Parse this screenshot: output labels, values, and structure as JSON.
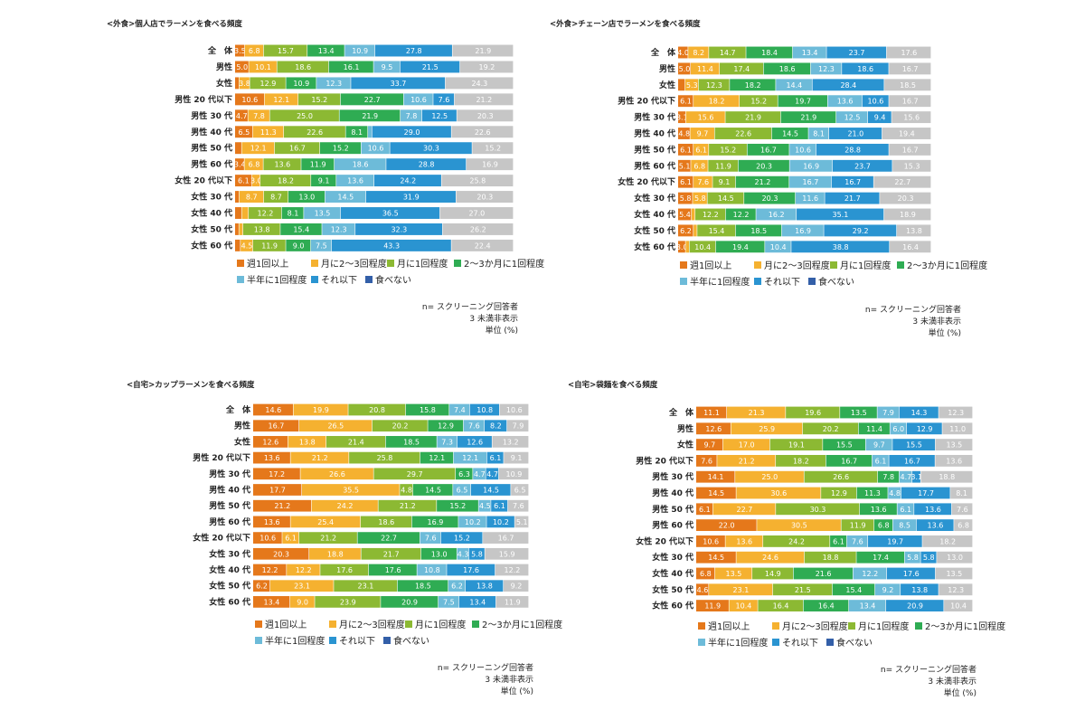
{
  "colors": [
    "#e5781b",
    "#f5b130",
    "#8cb933",
    "#2fac53",
    "#6dbbd9",
    "#2a94d1",
    "#335fa8",
    "#c6c6c6"
  ],
  "legend": [
    "週1回以上",
    "月に2～3回程度",
    "月に1回程度",
    "2～3か月に1回程度",
    "半年に1回程度",
    "それ以下",
    "食べない"
  ],
  "notes": [
    "n= スクリーニング回答者",
    "3 未満非表示",
    "単位 (%)"
  ],
  "chart_data": [
    {
      "type": "bar",
      "stacked": true,
      "orientation": "horizontal",
      "title": "<外食>個人店でラーメンを食べる頻度",
      "categories": [
        "全　体",
        "男性",
        "女性",
        "男性 20 代以下",
        "男性 30 代",
        "男性 40 代",
        "男性 50 代",
        "男性 60 代",
        "女性 20 代以下",
        "女性 30 代",
        "女性 40 代",
        "女性 50 代",
        "女性 60 代"
      ],
      "series": [
        {
          "name": "週1回以上",
          "values": [
            3.5,
            5.0,
            1.5,
            10.6,
            4.7,
            6.5,
            2.5,
            3.4,
            6.1,
            1.5,
            2.5,
            1.5,
            2.0
          ]
        },
        {
          "name": "月に2～3回程度",
          "values": [
            6.8,
            10.1,
            3.8,
            12.1,
            7.8,
            11.3,
            12.1,
            6.8,
            3.0,
            8.7,
            2.5,
            1.5,
            4.5
          ]
        },
        {
          "name": "月に1回程度",
          "values": [
            15.7,
            18.6,
            12.9,
            15.2,
            25.0,
            22.6,
            16.7,
            13.6,
            18.2,
            8.7,
            12.2,
            13.8,
            11.9
          ]
        },
        {
          "name": "2～3か月に1回程度",
          "values": [
            13.4,
            16.1,
            10.9,
            22.7,
            21.9,
            8.1,
            15.2,
            11.9,
            9.1,
            13.0,
            8.1,
            15.4,
            9.0
          ]
        },
        {
          "name": "半年に1回程度",
          "values": [
            10.9,
            9.5,
            12.3,
            10.6,
            7.8,
            1.5,
            10.6,
            18.6,
            13.6,
            14.5,
            13.5,
            12.3,
            7.5
          ]
        },
        {
          "name": "それ以下",
          "values": [
            27.8,
            21.5,
            33.7,
            7.6,
            12.5,
            29.0,
            30.3,
            28.8,
            24.2,
            31.9,
            36.5,
            32.3,
            43.3
          ]
        },
        {
          "name": "食べない",
          "values": [
            0,
            0,
            0,
            0,
            0,
            0,
            0,
            0,
            0,
            0,
            0,
            0,
            0
          ]
        },
        {
          "name": "",
          "values": [
            21.9,
            19.2,
            24.3,
            21.2,
            20.3,
            22.6,
            15.2,
            16.9,
            25.8,
            20.3,
            27.0,
            26.2,
            22.4
          ]
        }
      ]
    },
    {
      "type": "bar",
      "stacked": true,
      "orientation": "horizontal",
      "title": "<外食>チェーン店でラーメンを食べる頻度",
      "categories": [
        "全　体",
        "男性",
        "女性",
        "男性 20 代以下",
        "男性 30 代",
        "男性 40 代",
        "男性 50 代",
        "男性 60 代",
        "女性 20 代以下",
        "女性 30 代",
        "女性 40 代",
        "女性 50 代",
        "女性 60 代"
      ],
      "series": [
        {
          "name": "週1回以上",
          "values": [
            4.0,
            5.0,
            2.8,
            6.1,
            3.1,
            4.8,
            6.1,
            5.1,
            6.1,
            5.8,
            5.4,
            6.2,
            3.0
          ]
        },
        {
          "name": "月に2～3回程度",
          "values": [
            8.2,
            11.4,
            5.3,
            18.2,
            15.6,
            9.7,
            6.1,
            6.8,
            7.6,
            5.8,
            1.5,
            1.5,
            1.5
          ]
        },
        {
          "name": "月に1回程度",
          "values": [
            14.7,
            17.4,
            12.3,
            15.2,
            21.9,
            22.6,
            15.2,
            11.9,
            9.1,
            14.5,
            12.2,
            15.4,
            10.4
          ]
        },
        {
          "name": "2～3か月に1回程度",
          "values": [
            18.4,
            18.6,
            18.2,
            19.7,
            21.9,
            14.5,
            16.7,
            20.3,
            21.2,
            20.3,
            12.2,
            18.5,
            19.4
          ]
        },
        {
          "name": "半年に1回程度",
          "values": [
            13.4,
            12.3,
            14.4,
            13.6,
            12.5,
            8.1,
            10.6,
            16.9,
            16.7,
            11.6,
            16.2,
            16.9,
            10.4
          ]
        },
        {
          "name": "それ以下",
          "values": [
            23.7,
            18.6,
            28.4,
            10.6,
            9.4,
            21.0,
            28.8,
            23.7,
            16.7,
            21.7,
            35.1,
            29.2,
            38.8
          ]
        },
        {
          "name": "食べない",
          "values": [
            0,
            0,
            0,
            0,
            0,
            0,
            0,
            0,
            0,
            0,
            0,
            0,
            0
          ]
        },
        {
          "name": "",
          "values": [
            17.6,
            16.7,
            18.5,
            16.7,
            15.6,
            19.4,
            16.7,
            15.3,
            22.7,
            20.3,
            18.9,
            13.8,
            16.4
          ]
        }
      ]
    },
    {
      "type": "bar",
      "stacked": true,
      "orientation": "horizontal",
      "title": "<自宅>カップラーメンを食べる頻度",
      "categories": [
        "全　体",
        "男性",
        "女性",
        "男性 20 代以下",
        "男性 30 代",
        "男性 40 代",
        "男性 50 代",
        "男性 60 代",
        "女性 20 代以下",
        "女性 30 代",
        "女性 40 代",
        "女性 50 代",
        "女性 60 代"
      ],
      "series": [
        {
          "name": "週1回以上",
          "values": [
            14.6,
            16.7,
            12.6,
            13.6,
            17.2,
            17.7,
            21.2,
            13.6,
            10.6,
            20.3,
            12.2,
            6.2,
            13.4
          ]
        },
        {
          "name": "月に2～3回程度",
          "values": [
            19.9,
            26.5,
            13.8,
            21.2,
            26.6,
            35.5,
            24.2,
            25.4,
            6.1,
            18.8,
            12.2,
            23.1,
            9.0
          ]
        },
        {
          "name": "月に1回程度",
          "values": [
            20.8,
            20.2,
            21.4,
            25.8,
            29.7,
            4.8,
            21.2,
            18.6,
            21.2,
            21.7,
            17.6,
            23.1,
            23.9
          ]
        },
        {
          "name": "2～3か月に1回程度",
          "values": [
            15.8,
            12.9,
            18.5,
            12.1,
            6.3,
            14.5,
            15.2,
            16.9,
            22.7,
            13.0,
            17.6,
            18.5,
            20.9
          ]
        },
        {
          "name": "半年に1回程度",
          "values": [
            7.4,
            7.6,
            7.3,
            12.1,
            4.7,
            6.5,
            4.5,
            10.2,
            7.6,
            4.3,
            10.8,
            6.2,
            7.5
          ]
        },
        {
          "name": "それ以下",
          "values": [
            10.8,
            8.2,
            12.6,
            6.1,
            4.7,
            14.5,
            6.1,
            10.2,
            15.2,
            5.8,
            17.6,
            13.8,
            13.4
          ]
        },
        {
          "name": "食べない",
          "values": [
            0,
            0,
            0,
            0,
            0,
            0,
            0,
            0,
            0,
            0,
            0,
            0,
            0
          ]
        },
        {
          "name": "",
          "values": [
            10.6,
            7.9,
            13.2,
            9.1,
            10.9,
            6.5,
            7.6,
            5.1,
            16.7,
            15.9,
            12.2,
            9.2,
            11.9
          ]
        }
      ]
    },
    {
      "type": "bar",
      "stacked": true,
      "orientation": "horizontal",
      "title": "<自宅>袋麺を食べる頻度",
      "categories": [
        "全　体",
        "男性",
        "女性",
        "男性 20 代以下",
        "男性 30 代",
        "男性 40 代",
        "男性 50 代",
        "男性 60 代",
        "女性 20 代以下",
        "女性 30 代",
        "女性 40 代",
        "女性 50 代",
        "女性 60 代"
      ],
      "series": [
        {
          "name": "週1回以上",
          "values": [
            11.1,
            12.6,
            9.7,
            7.6,
            14.1,
            14.5,
            6.1,
            22.0,
            10.6,
            14.5,
            6.8,
            4.6,
            11.9
          ]
        },
        {
          "name": "月に2～3回程度",
          "values": [
            21.3,
            25.9,
            17.0,
            21.2,
            25.0,
            30.6,
            22.7,
            30.5,
            13.6,
            24.6,
            13.5,
            23.1,
            10.4
          ]
        },
        {
          "name": "月に1回程度",
          "values": [
            19.6,
            20.2,
            19.1,
            18.2,
            26.6,
            12.9,
            30.3,
            11.9,
            24.2,
            18.8,
            14.9,
            21.5,
            16.4
          ]
        },
        {
          "name": "2～3か月に1回程度",
          "values": [
            13.5,
            11.4,
            15.5,
            16.7,
            7.8,
            11.3,
            13.6,
            6.8,
            6.1,
            17.4,
            21.6,
            15.4,
            16.4
          ]
        },
        {
          "name": "半年に1回程度",
          "values": [
            7.9,
            6.0,
            9.7,
            6.1,
            4.7,
            4.8,
            6.1,
            8.5,
            7.6,
            5.8,
            12.2,
            9.2,
            13.4
          ]
        },
        {
          "name": "それ以下",
          "values": [
            14.3,
            12.9,
            15.5,
            16.7,
            3.1,
            17.7,
            13.6,
            13.6,
            19.7,
            5.8,
            17.6,
            13.8,
            20.9
          ]
        },
        {
          "name": "食べない",
          "values": [
            0,
            0,
            0,
            0,
            0,
            0,
            0,
            0,
            0,
            0,
            0,
            0,
            0
          ]
        },
        {
          "name": "",
          "values": [
            12.3,
            11.0,
            13.5,
            13.6,
            18.8,
            8.1,
            7.6,
            6.8,
            18.2,
            13.0,
            13.5,
            12.3,
            10.4
          ]
        }
      ]
    }
  ]
}
